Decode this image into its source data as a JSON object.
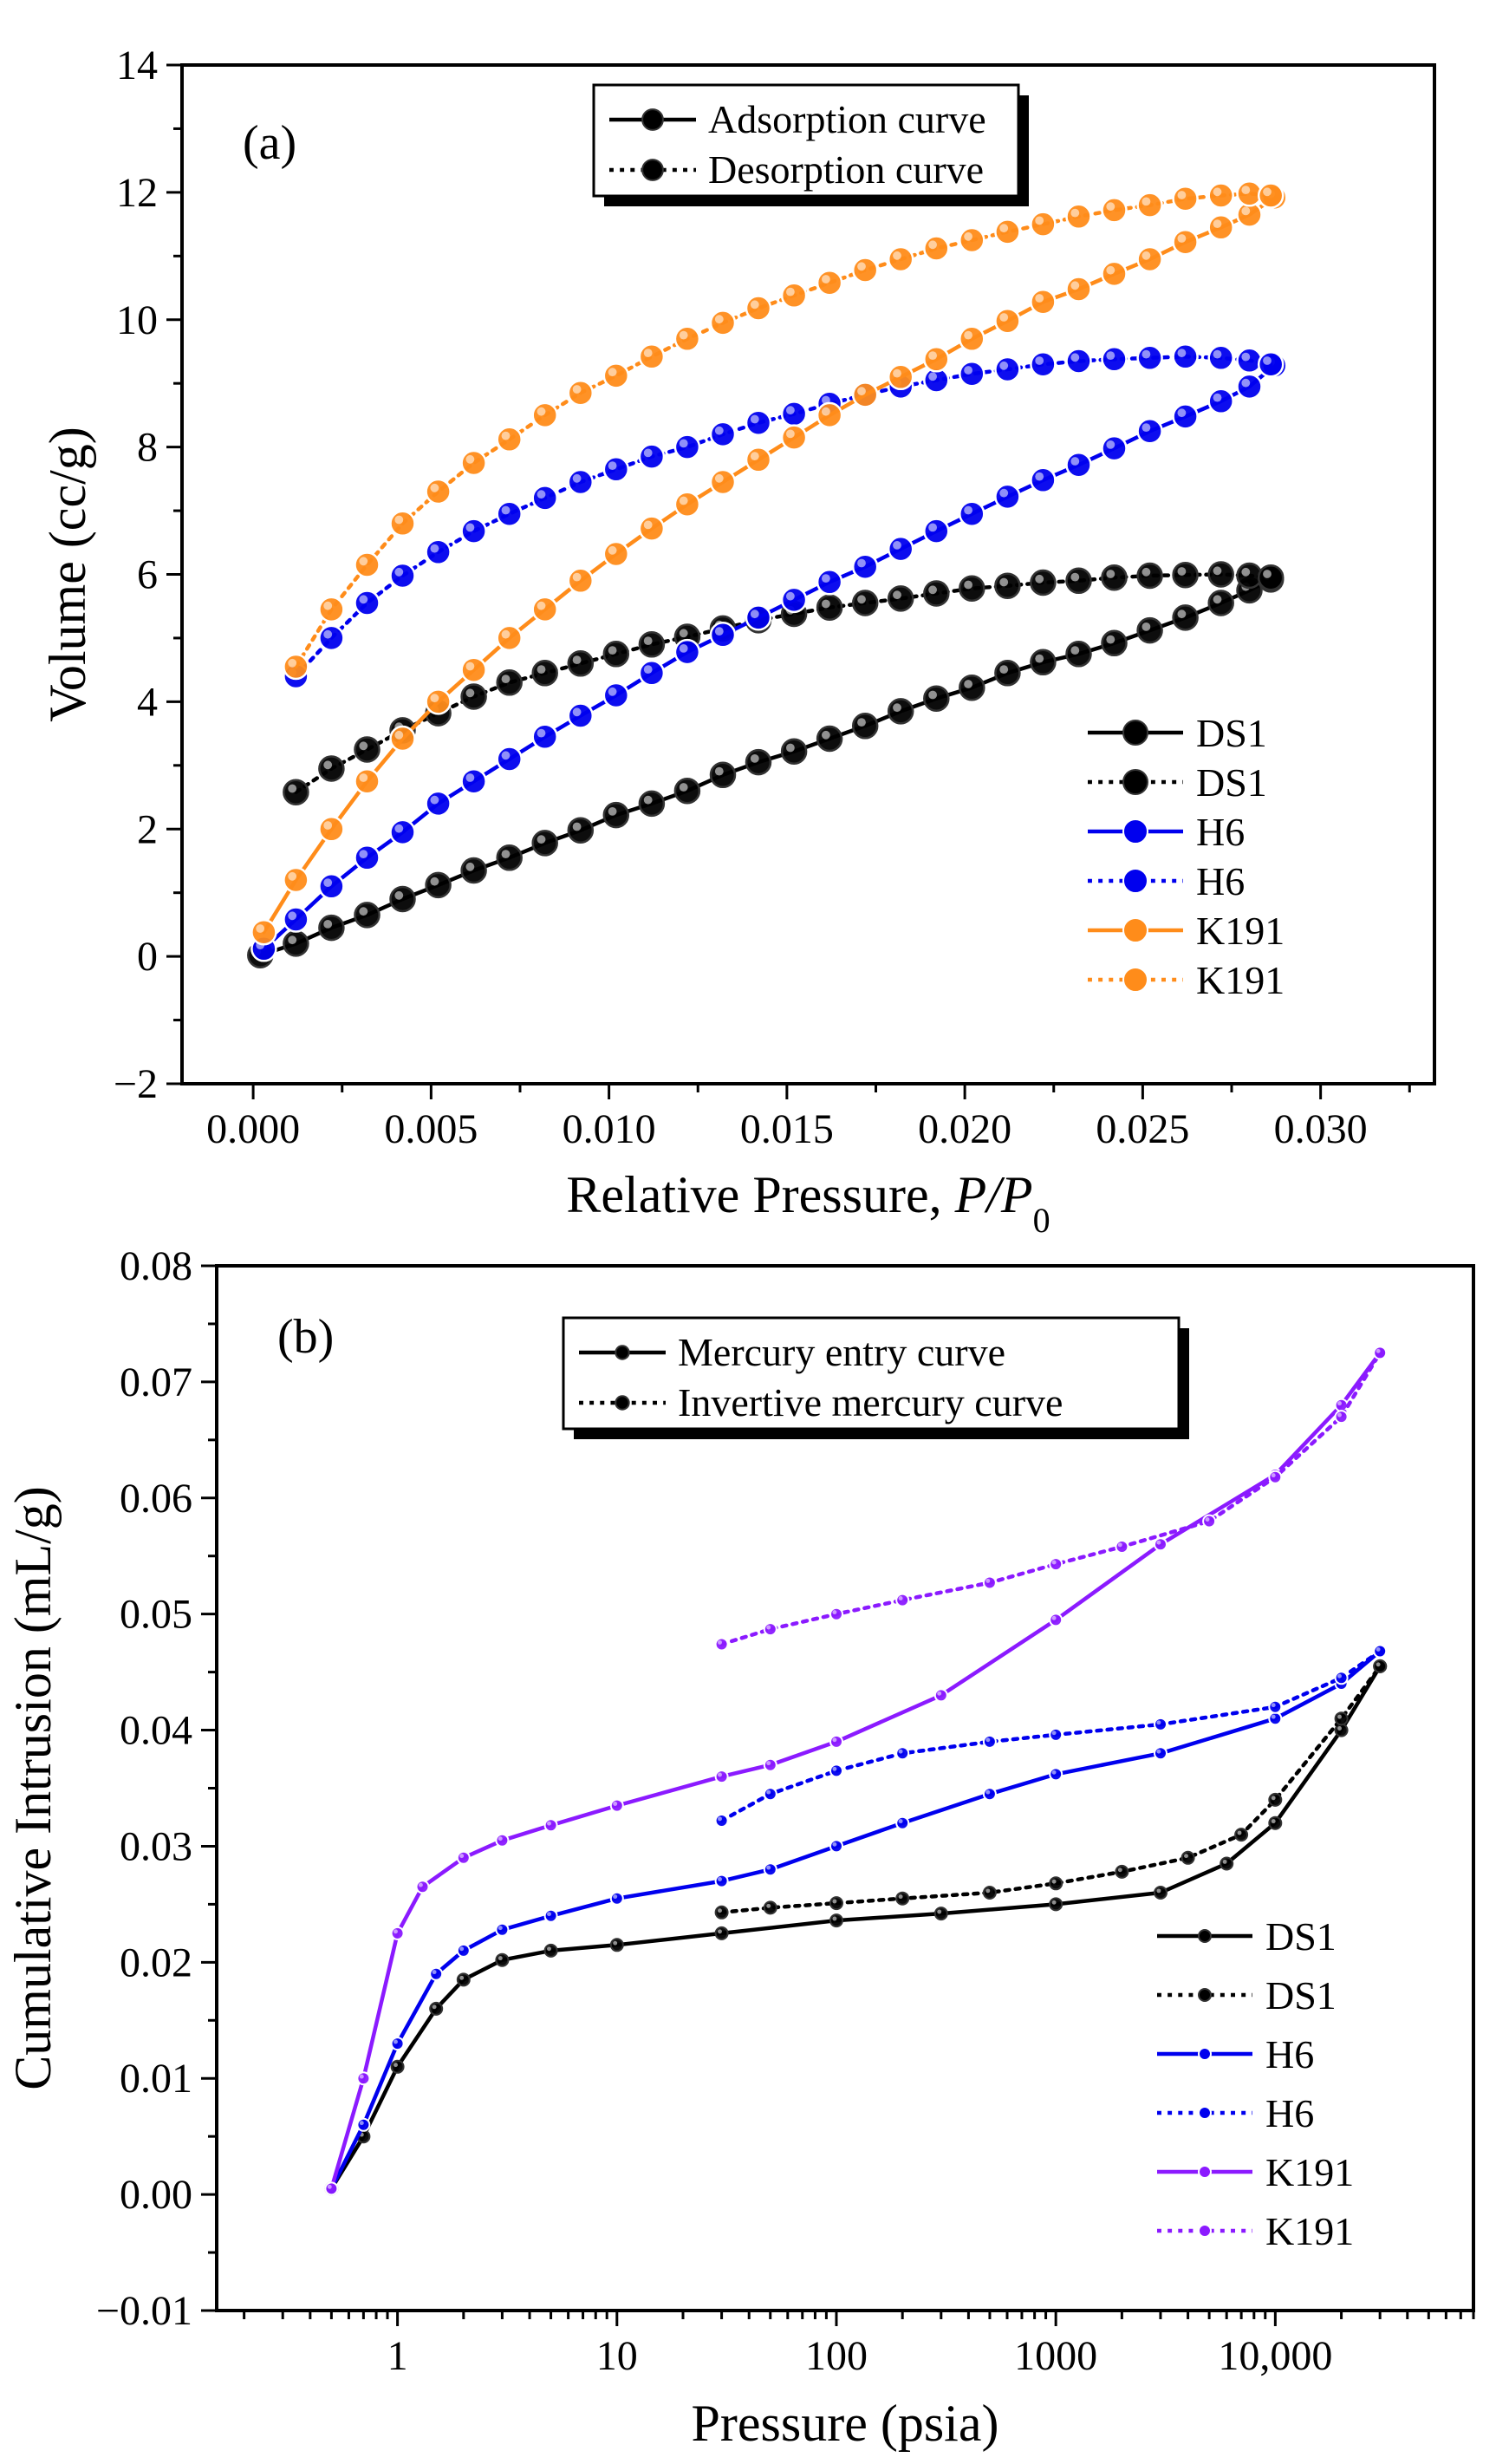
{
  "chart_data": [
    {
      "panel_label": "(a)",
      "type": "line",
      "xlabel": "Relative Pressure, P/P",
      "xlabel_parts": {
        "main": "Relative Pressure, ",
        "italic": "P/P",
        "sub": "0"
      },
      "ylabel": "Volume  (cc/g)",
      "xlim": [
        -0.002,
        0.0332
      ],
      "ylim": [
        -2,
        14
      ],
      "xticks": [
        0.0,
        0.005,
        0.01,
        0.015,
        0.02,
        0.025,
        0.03
      ],
      "xtick_labels": [
        "0.000",
        "0.005",
        "0.010",
        "0.015",
        "0.020",
        "0.025",
        "0.030"
      ],
      "yticks": [
        -2,
        0,
        2,
        4,
        6,
        8,
        10,
        12,
        14
      ],
      "ytick_labels": [
        "−2",
        "0",
        "2",
        "4",
        "6",
        "8",
        "10",
        "12",
        "14"
      ],
      "grid": false,
      "style_legend": {
        "placement": "top-center",
        "entries": [
          {
            "label": "Adsorption curve",
            "dash": "solid"
          },
          {
            "label": "Desorption curve",
            "dash": "dotted"
          }
        ]
      },
      "series_legend_placement": "bottom-right",
      "series": [
        {
          "name": "DS1",
          "color": "#000000",
          "dash": "solid",
          "x": [
            0.0002,
            0.0012,
            0.0022,
            0.0032,
            0.0042,
            0.0052,
            0.0062,
            0.0072,
            0.0082,
            0.0092,
            0.0102,
            0.0112,
            0.0122,
            0.0132,
            0.0142,
            0.0152,
            0.0162,
            0.0172,
            0.0182,
            0.0192,
            0.0202,
            0.0212,
            0.0222,
            0.0232,
            0.0242,
            0.0252,
            0.0262,
            0.0272,
            0.028,
            0.0286
          ],
          "y": [
            0.02,
            0.2,
            0.45,
            0.65,
            0.9,
            1.12,
            1.35,
            1.55,
            1.78,
            1.98,
            2.22,
            2.4,
            2.6,
            2.85,
            3.05,
            3.22,
            3.42,
            3.62,
            3.85,
            4.05,
            4.22,
            4.45,
            4.62,
            4.75,
            4.92,
            5.12,
            5.32,
            5.55,
            5.75,
            5.92
          ]
        },
        {
          "name": "DS1",
          "color": "#000000",
          "dash": "dotted",
          "x": [
            0.0012,
            0.0022,
            0.0032,
            0.0042,
            0.0052,
            0.0062,
            0.0072,
            0.0082,
            0.0092,
            0.0102,
            0.0112,
            0.0122,
            0.0132,
            0.0142,
            0.0152,
            0.0162,
            0.0172,
            0.0182,
            0.0192,
            0.0202,
            0.0212,
            0.0222,
            0.0232,
            0.0242,
            0.0252,
            0.0262,
            0.0272,
            0.028,
            0.0286
          ],
          "y": [
            2.58,
            2.95,
            3.25,
            3.55,
            3.82,
            4.08,
            4.3,
            4.45,
            4.6,
            4.75,
            4.9,
            5.02,
            5.15,
            5.28,
            5.38,
            5.48,
            5.55,
            5.62,
            5.7,
            5.78,
            5.82,
            5.87,
            5.9,
            5.95,
            5.98,
            5.99,
            6.0,
            5.98,
            5.95
          ]
        },
        {
          "name": "H6",
          "color": "#0000ee",
          "dash": "solid",
          "x": [
            0.0003,
            0.0012,
            0.0022,
            0.0032,
            0.0042,
            0.0052,
            0.0062,
            0.0072,
            0.0082,
            0.0092,
            0.0102,
            0.0112,
            0.0122,
            0.0132,
            0.0142,
            0.0152,
            0.0162,
            0.0172,
            0.0182,
            0.0192,
            0.0202,
            0.0212,
            0.0222,
            0.0232,
            0.0242,
            0.0252,
            0.0262,
            0.0272,
            0.028,
            0.0287
          ],
          "y": [
            0.12,
            0.58,
            1.1,
            1.55,
            1.95,
            2.4,
            2.75,
            3.1,
            3.45,
            3.78,
            4.1,
            4.45,
            4.78,
            5.05,
            5.32,
            5.6,
            5.88,
            6.12,
            6.4,
            6.68,
            6.95,
            7.22,
            7.48,
            7.72,
            7.98,
            8.25,
            8.48,
            8.72,
            8.95,
            9.28
          ]
        },
        {
          "name": "H6",
          "color": "#0000ee",
          "dash": "dotted",
          "x": [
            0.0012,
            0.0022,
            0.0032,
            0.0042,
            0.0052,
            0.0062,
            0.0072,
            0.0082,
            0.0092,
            0.0102,
            0.0112,
            0.0122,
            0.0132,
            0.0142,
            0.0152,
            0.0162,
            0.0172,
            0.0182,
            0.0192,
            0.0202,
            0.0212,
            0.0222,
            0.0232,
            0.0242,
            0.0252,
            0.0262,
            0.0272,
            0.028,
            0.0286
          ],
          "y": [
            4.4,
            5.0,
            5.55,
            5.98,
            6.35,
            6.68,
            6.95,
            7.2,
            7.45,
            7.65,
            7.85,
            8.0,
            8.2,
            8.38,
            8.52,
            8.68,
            8.82,
            8.95,
            9.05,
            9.15,
            9.22,
            9.3,
            9.35,
            9.38,
            9.4,
            9.42,
            9.4,
            9.36,
            9.3
          ]
        },
        {
          "name": "K191",
          "color": "#ff8c1a",
          "dash": "solid",
          "x": [
            0.0003,
            0.0012,
            0.0022,
            0.0032,
            0.0042,
            0.0052,
            0.0062,
            0.0072,
            0.0082,
            0.0092,
            0.0102,
            0.0112,
            0.0122,
            0.0132,
            0.0142,
            0.0152,
            0.0162,
            0.0172,
            0.0182,
            0.0192,
            0.0202,
            0.0212,
            0.0222,
            0.0232,
            0.0242,
            0.0252,
            0.0262,
            0.0272,
            0.028,
            0.0287
          ],
          "y": [
            0.38,
            1.2,
            2.0,
            2.75,
            3.42,
            4.0,
            4.5,
            5.0,
            5.45,
            5.9,
            6.32,
            6.72,
            7.1,
            7.45,
            7.8,
            8.15,
            8.5,
            8.82,
            9.1,
            9.38,
            9.7,
            9.98,
            10.28,
            10.48,
            10.72,
            10.95,
            11.22,
            11.45,
            11.65,
            11.92
          ]
        },
        {
          "name": "K191",
          "color": "#ff8c1a",
          "dash": "dotted",
          "x": [
            0.0012,
            0.0022,
            0.0032,
            0.0042,
            0.0052,
            0.0062,
            0.0072,
            0.0082,
            0.0092,
            0.0102,
            0.0112,
            0.0122,
            0.0132,
            0.0142,
            0.0152,
            0.0162,
            0.0172,
            0.0182,
            0.0192,
            0.0202,
            0.0212,
            0.0222,
            0.0232,
            0.0242,
            0.0252,
            0.0262,
            0.0272,
            0.028,
            0.0286
          ],
          "y": [
            4.55,
            5.45,
            6.15,
            6.8,
            7.3,
            7.75,
            8.12,
            8.5,
            8.85,
            9.12,
            9.42,
            9.7,
            9.95,
            10.18,
            10.38,
            10.58,
            10.78,
            10.95,
            11.12,
            11.25,
            11.38,
            11.5,
            11.62,
            11.72,
            11.8,
            11.9,
            11.95,
            11.98,
            11.95
          ]
        }
      ]
    },
    {
      "panel_label": "(b)",
      "type": "line",
      "xlabel": "Pressure (psia)",
      "ylabel": "Cumulative Intrusion (mL/g)",
      "xscale": "log",
      "xlim": [
        0.15,
        80000
      ],
      "ylim": [
        -0.01,
        0.08
      ],
      "xticks": [
        1,
        10,
        100,
        1000,
        10000
      ],
      "xtick_labels": [
        "1",
        "10",
        "100",
        "1000",
        "10,000"
      ],
      "yticks": [
        -0.01,
        0.0,
        0.01,
        0.02,
        0.03,
        0.04,
        0.05,
        0.06,
        0.07,
        0.08
      ],
      "ytick_labels": [
        "−0.01",
        "0.00",
        "0.01",
        "0.02",
        "0.03",
        "0.04",
        "0.05",
        "0.06",
        "0.07",
        "0.08"
      ],
      "grid": false,
      "style_legend": {
        "placement": "top-center",
        "entries": [
          {
            "label": "Mercury entry curve",
            "dash": "solid"
          },
          {
            "label": "Invertive mercury curve",
            "dash": "dotted"
          }
        ]
      },
      "series_legend_placement": "bottom-right",
      "series": [
        {
          "name": "DS1",
          "color": "#000000",
          "dash": "solid",
          "x": [
            0.5,
            0.7,
            1.0,
            1.5,
            2,
            3,
            5,
            10,
            30,
            100,
            300,
            1000,
            3000,
            6000,
            10000,
            20000,
            30000
          ],
          "y": [
            0.0005,
            0.005,
            0.011,
            0.016,
            0.0185,
            0.0202,
            0.021,
            0.0215,
            0.0225,
            0.0236,
            0.0242,
            0.025,
            0.026,
            0.0285,
            0.032,
            0.04,
            0.0455
          ]
        },
        {
          "name": "DS1",
          "color": "#000000",
          "dash": "dotted",
          "x": [
            30,
            50,
            100,
            200,
            500,
            1000,
            2000,
            4000,
            7000,
            10000,
            20000,
            30000
          ],
          "y": [
            0.0243,
            0.0247,
            0.0251,
            0.0255,
            0.026,
            0.0268,
            0.0278,
            0.029,
            0.031,
            0.034,
            0.041,
            0.0455
          ]
        },
        {
          "name": "H6",
          "color": "#0000ee",
          "dash": "solid",
          "x": [
            0.5,
            0.7,
            1.0,
            1.5,
            2,
            3,
            5,
            10,
            30,
            50,
            100,
            200,
            500,
            1000,
            3000,
            10000,
            20000,
            30000
          ],
          "y": [
            0.0005,
            0.006,
            0.013,
            0.019,
            0.021,
            0.0228,
            0.024,
            0.0255,
            0.027,
            0.028,
            0.03,
            0.032,
            0.0345,
            0.0362,
            0.038,
            0.041,
            0.044,
            0.0468
          ]
        },
        {
          "name": "H6",
          "color": "#0000ee",
          "dash": "dotted",
          "x": [
            30,
            50,
            100,
            200,
            500,
            1000,
            3000,
            10000,
            20000,
            30000
          ],
          "y": [
            0.0322,
            0.0345,
            0.0365,
            0.038,
            0.039,
            0.0396,
            0.0405,
            0.042,
            0.0445,
            0.0468
          ]
        },
        {
          "name": "K191",
          "color": "#8b1aff",
          "dash": "solid",
          "x": [
            0.5,
            0.7,
            1.0,
            1.3,
            2,
            3,
            5,
            10,
            30,
            50,
            100,
            300,
            1000,
            3000,
            10000,
            20000,
            30000
          ],
          "y": [
            0.0005,
            0.01,
            0.0225,
            0.0265,
            0.029,
            0.0305,
            0.0318,
            0.0335,
            0.036,
            0.037,
            0.039,
            0.043,
            0.0495,
            0.056,
            0.062,
            0.068,
            0.0725
          ]
        },
        {
          "name": "K191",
          "color": "#8b1aff",
          "dash": "dotted",
          "x": [
            30,
            50,
            100,
            200,
            500,
            1000,
            2000,
            5000,
            10000,
            20000,
            30000
          ],
          "y": [
            0.0474,
            0.0487,
            0.05,
            0.0512,
            0.0527,
            0.0543,
            0.0558,
            0.058,
            0.0618,
            0.067,
            0.0725
          ]
        }
      ]
    }
  ]
}
